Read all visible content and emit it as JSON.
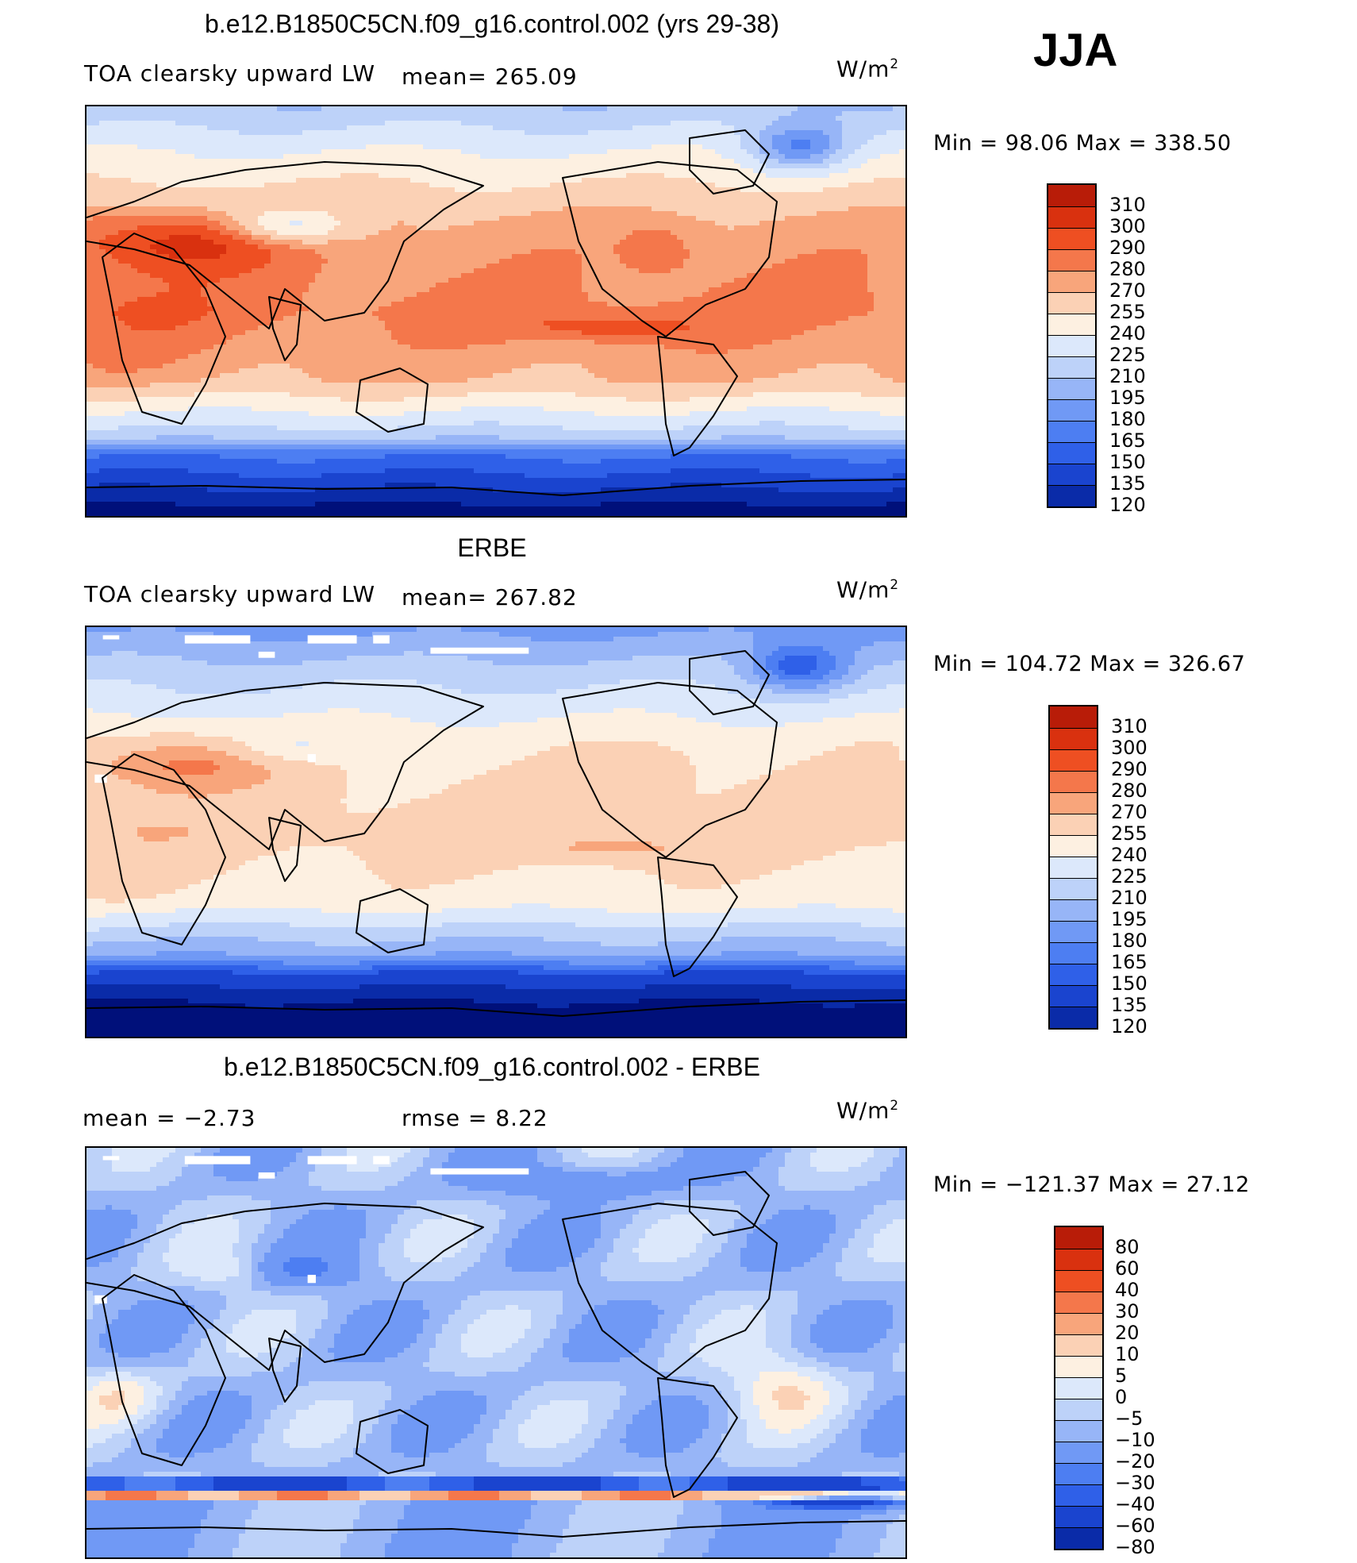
{
  "season": "JJA",
  "panels": [
    {
      "title": "b.e12.B1850C5CN.f09_g16.control.002 (yrs 29-38)",
      "variable": "TOA clearsky upward LW",
      "stat_text": "mean=  265.09",
      "units_base": "W/m",
      "units_exp": "2",
      "minmax": "Min =   98.06 Max =  338.50",
      "legend_labels": [
        "310",
        "300",
        "290",
        "280",
        "270",
        "255",
        "240",
        "225",
        "210",
        "195",
        "180",
        "165",
        "150",
        "135",
        "120"
      ]
    },
    {
      "title": "ERBE",
      "variable": "TOA clearsky upward LW",
      "stat_text": "mean=  267.82",
      "units_base": "W/m",
      "units_exp": "2",
      "minmax": "Min =  104.72 Max =  326.67",
      "legend_labels": [
        "310",
        "300",
        "290",
        "280",
        "270",
        "255",
        "240",
        "225",
        "210",
        "195",
        "180",
        "165",
        "150",
        "135",
        "120"
      ]
    },
    {
      "title": "b.e12.B1850C5CN.f09_g16.control.002 - ERBE",
      "mean_text": "mean =   −2.73",
      "rmse_text": "rmse =    8.22",
      "units_base": "W/m",
      "units_exp": "2",
      "minmax": "Min = −121.37 Max =   27.12",
      "legend_labels": [
        "80",
        "60",
        "40",
        "30",
        "20",
        "10",
        "5",
        "0",
        "−5",
        "−10",
        "−20",
        "−30",
        "−40",
        "−60",
        "−80"
      ]
    }
  ],
  "chart_data": [
    {
      "type": "heatmap",
      "title": "b.e12.B1850C5CN.f09_g16.control.002 (yrs 29-38)",
      "subtitle": "TOA clearsky upward LW",
      "units": "W/m2",
      "mean": 265.09,
      "min": 98.06,
      "max": 338.5,
      "contour_levels": [
        120,
        135,
        150,
        165,
        180,
        195,
        210,
        225,
        240,
        255,
        270,
        280,
        290,
        300,
        310
      ],
      "colors": [
        "#00107a",
        "#0a2ba8",
        "#1a44cf",
        "#2f60e8",
        "#4d7ef2",
        "#7099f5",
        "#97b5f7",
        "#bdd2f9",
        "#dce8fb",
        "#fdf0e1",
        "#fbd1b5",
        "#f8a57b",
        "#f4774b",
        "#ee4f22",
        "#d9310f",
        "#b81c08",
        "#8a0e03"
      ]
    },
    {
      "type": "heatmap",
      "title": "ERBE",
      "subtitle": "TOA clearsky upward LW",
      "units": "W/m2",
      "mean": 267.82,
      "min": 104.72,
      "max": 326.67,
      "contour_levels": [
        120,
        135,
        150,
        165,
        180,
        195,
        210,
        225,
        240,
        255,
        270,
        280,
        290,
        300,
        310
      ],
      "colors": [
        "#00107a",
        "#0a2ba8",
        "#1a44cf",
        "#2f60e8",
        "#4d7ef2",
        "#7099f5",
        "#97b5f7",
        "#bdd2f9",
        "#dce8fb",
        "#fdf0e1",
        "#fbd1b5",
        "#f8a57b",
        "#f4774b",
        "#ee4f22",
        "#d9310f",
        "#b81c08",
        "#8a0e03"
      ]
    },
    {
      "type": "heatmap",
      "title": "b.e12.B1850C5CN.f09_g16.control.002 - ERBE",
      "units": "W/m2",
      "mean": -2.73,
      "rmse": 8.22,
      "min": -121.37,
      "max": 27.12,
      "contour_levels": [
        -80,
        -60,
        -40,
        -30,
        -20,
        -10,
        -5,
        0,
        5,
        10,
        20,
        30,
        40,
        60,
        80
      ],
      "colors": [
        "#00107a",
        "#0a2ba8",
        "#1a44cf",
        "#2f60e8",
        "#4d7ef2",
        "#7099f5",
        "#97b5f7",
        "#bdd2f9",
        "#dce8fb",
        "#fdf0e1",
        "#fbd1b5",
        "#f8a57b",
        "#f4774b",
        "#ee4f22",
        "#d9310f",
        "#b81c08",
        "#8a0e03"
      ]
    }
  ]
}
